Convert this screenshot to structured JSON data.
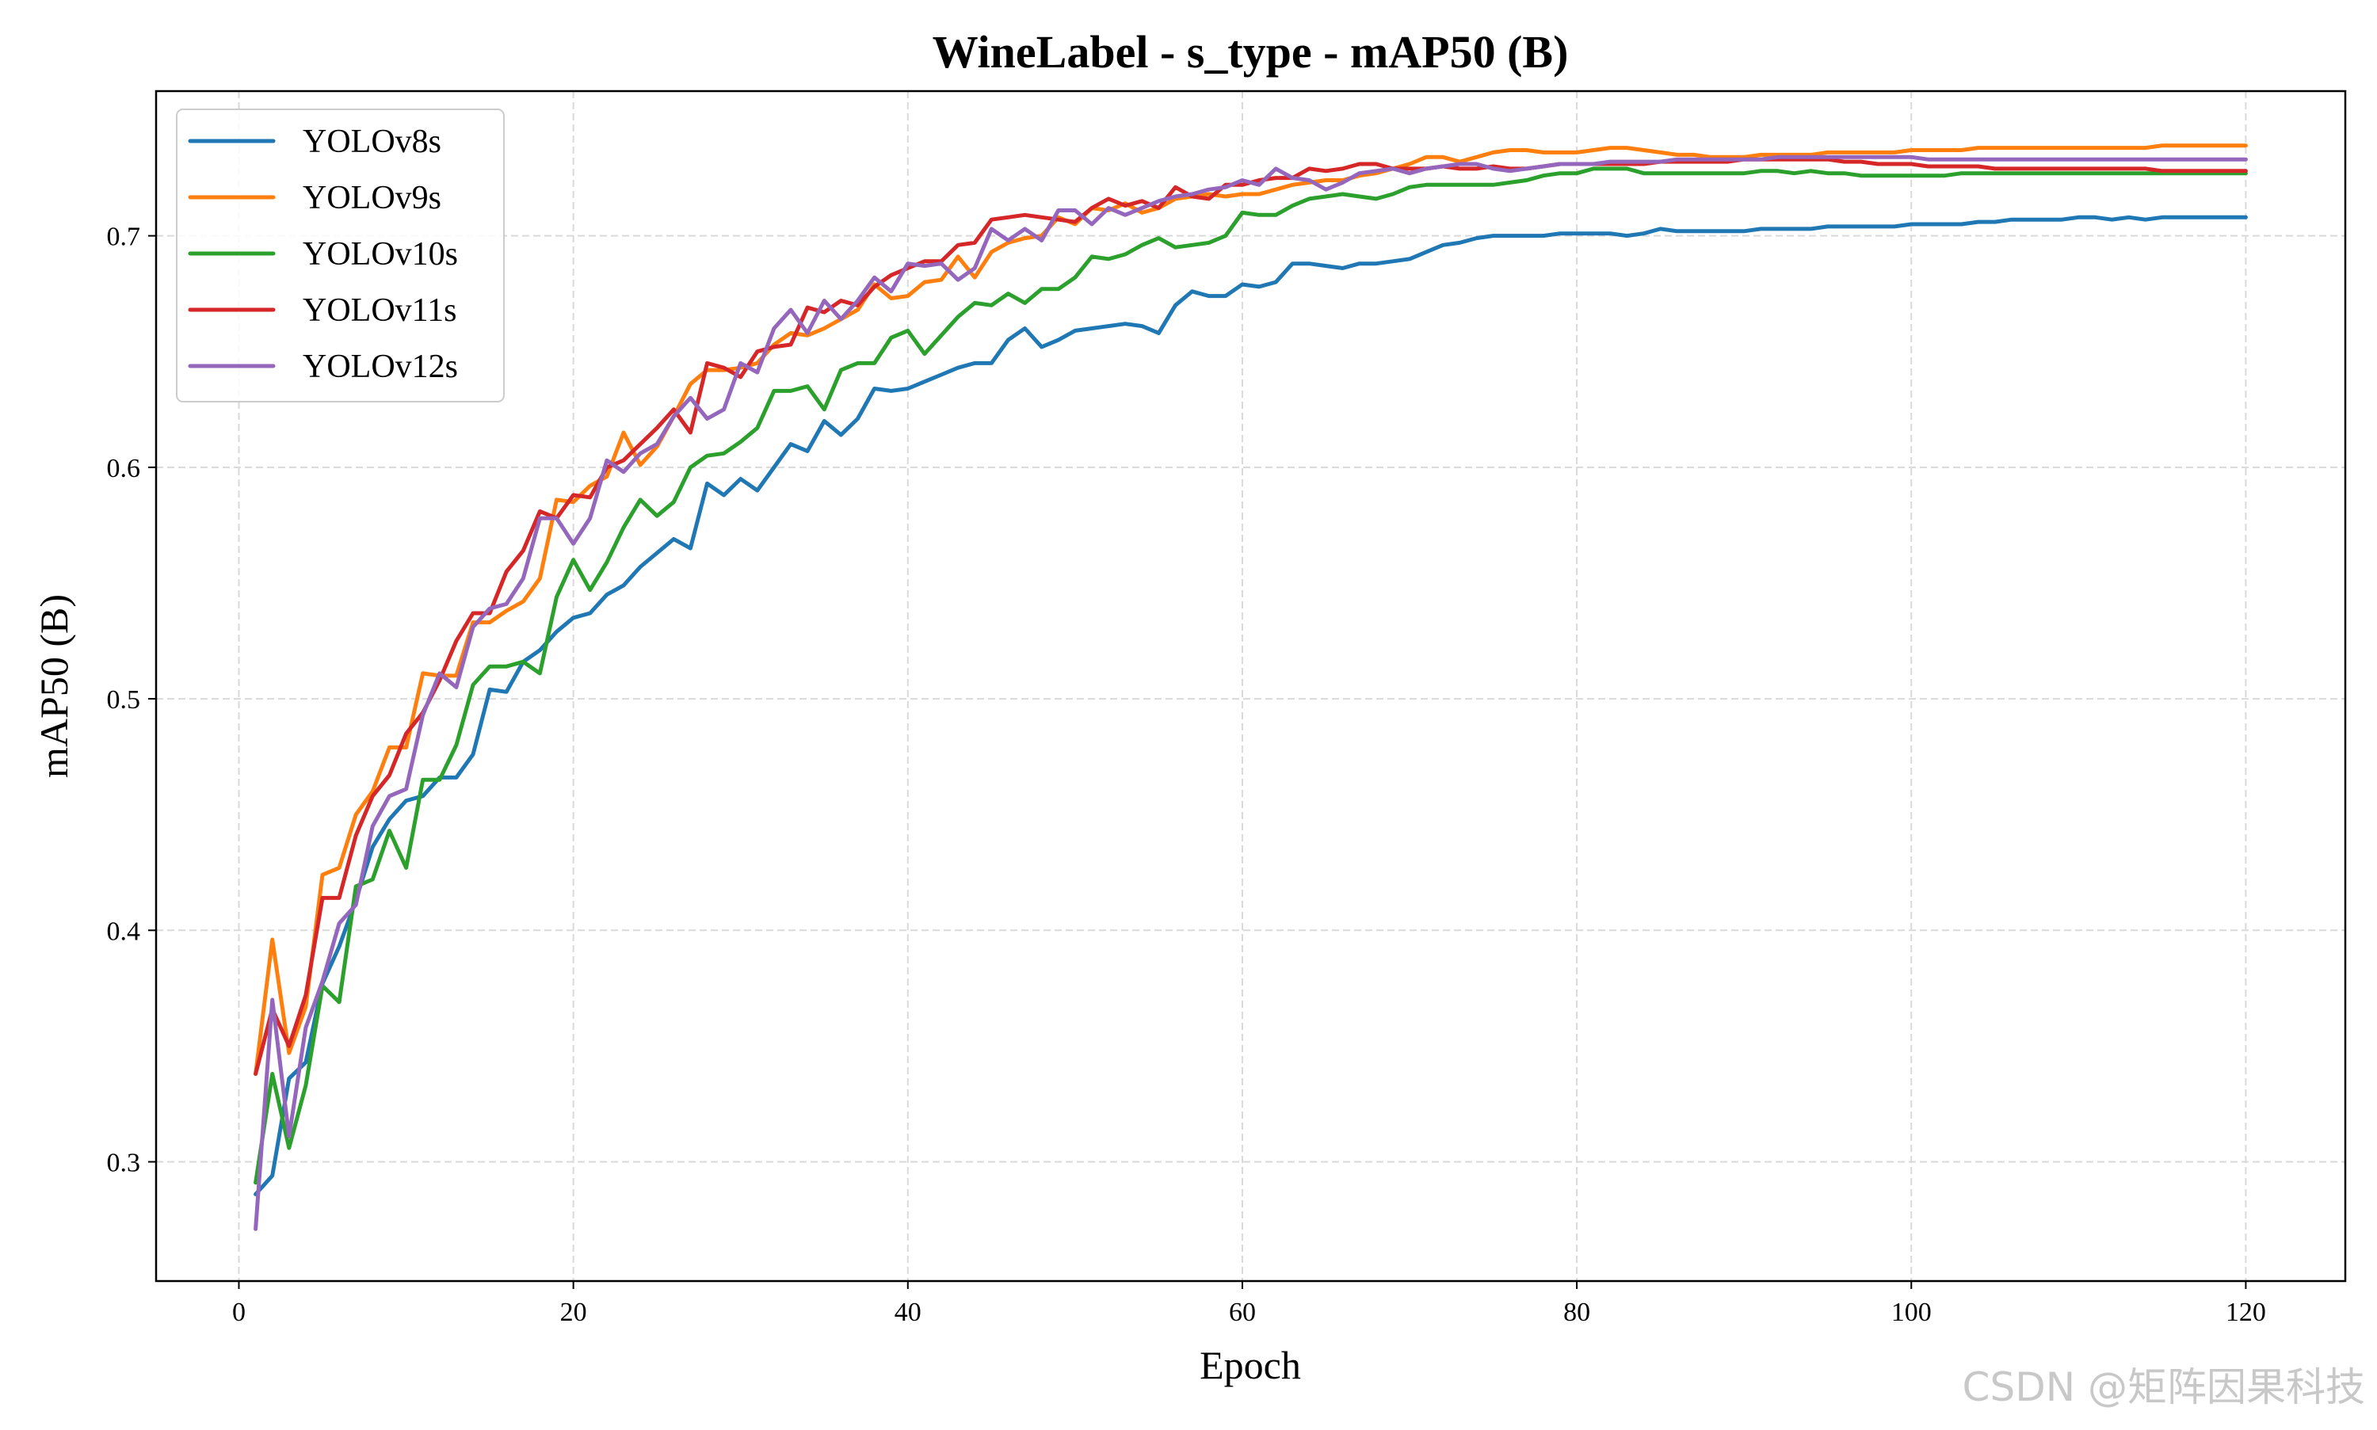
{
  "chart_data": {
    "type": "line",
    "title": "WineLabel - s_type - mAP50 (B)",
    "xlabel": "Epoch",
    "ylabel": "mAP50 (B)",
    "xlim": [
      -4.95,
      125.95
    ],
    "ylim": [
      0.2485,
      0.7625
    ],
    "xticks": [
      0,
      20,
      40,
      60,
      80,
      100,
      120
    ],
    "yticks": [
      0.3,
      0.4,
      0.5,
      0.6,
      0.7
    ],
    "xtick_labels": [
      "0",
      "20",
      "40",
      "60",
      "80",
      "100",
      "120"
    ],
    "ytick_labels": [
      "0.3",
      "0.4",
      "0.5",
      "0.6",
      "0.7"
    ],
    "grid": true,
    "legend_position": "top-left",
    "x": [
      1,
      2,
      3,
      4,
      5,
      6,
      7,
      8,
      9,
      10,
      11,
      12,
      13,
      14,
      15,
      16,
      17,
      18,
      19,
      20,
      21,
      22,
      23,
      24,
      25,
      26,
      27,
      28,
      29,
      30,
      31,
      32,
      33,
      34,
      35,
      36,
      37,
      38,
      39,
      40,
      41,
      42,
      43,
      44,
      45,
      46,
      47,
      48,
      49,
      50,
      51,
      52,
      53,
      54,
      55,
      56,
      57,
      58,
      59,
      60,
      61,
      62,
      63,
      64,
      65,
      66,
      67,
      68,
      69,
      70,
      71,
      72,
      73,
      74,
      75,
      76,
      77,
      78,
      79,
      80,
      81,
      82,
      83,
      84,
      85,
      86,
      87,
      88,
      89,
      90,
      91,
      92,
      93,
      94,
      95,
      96,
      97,
      98,
      99,
      100,
      101,
      102,
      103,
      104,
      105,
      106,
      107,
      108,
      109,
      110,
      111,
      112,
      113,
      114,
      115,
      116,
      117,
      118,
      119,
      120
    ],
    "series": [
      {
        "name": "YOLOv8s",
        "color": "#1f77b4",
        "values": [
          0.286,
          0.294,
          0.336,
          0.343,
          0.377,
          0.393,
          0.413,
          0.436,
          0.448,
          0.456,
          0.458,
          0.466,
          0.466,
          0.476,
          0.504,
          0.503,
          0.516,
          0.521,
          0.529,
          0.535,
          0.537,
          0.545,
          0.549,
          0.557,
          0.563,
          0.569,
          0.565,
          0.593,
          0.588,
          0.595,
          0.59,
          0.6,
          0.61,
          0.607,
          0.62,
          0.614,
          0.621,
          0.634,
          0.633,
          0.634,
          0.637,
          0.64,
          0.643,
          0.645,
          0.645,
          0.655,
          0.66,
          0.652,
          0.655,
          0.659,
          0.66,
          0.661,
          0.662,
          0.661,
          0.658,
          0.67,
          0.676,
          0.674,
          0.674,
          0.679,
          0.678,
          0.68,
          0.688,
          0.688,
          0.687,
          0.686,
          0.688,
          0.688,
          0.689,
          0.69,
          0.693,
          0.696,
          0.697,
          0.699,
          0.7,
          0.7,
          0.7,
          0.7,
          0.701,
          0.701,
          0.701,
          0.701,
          0.7,
          0.701,
          0.703,
          0.702,
          0.702,
          0.702,
          0.702,
          0.702,
          0.703,
          0.703,
          0.703,
          0.703,
          0.704,
          0.704,
          0.704,
          0.704,
          0.704,
          0.705,
          0.705,
          0.705,
          0.705,
          0.706,
          0.706,
          0.707,
          0.707,
          0.707,
          0.707,
          0.708,
          0.708,
          0.707,
          0.708,
          0.707,
          0.708,
          0.708,
          0.708,
          0.708,
          0.708,
          0.708
        ]
      },
      {
        "name": "YOLOv9s",
        "color": "#ff7f0e",
        "values": [
          0.338,
          0.396,
          0.347,
          0.367,
          0.424,
          0.427,
          0.45,
          0.46,
          0.479,
          0.479,
          0.511,
          0.51,
          0.51,
          0.533,
          0.533,
          0.538,
          0.542,
          0.552,
          0.586,
          0.585,
          0.592,
          0.596,
          0.615,
          0.601,
          0.609,
          0.622,
          0.636,
          0.642,
          0.642,
          0.643,
          0.645,
          0.653,
          0.658,
          0.657,
          0.66,
          0.664,
          0.668,
          0.679,
          0.673,
          0.674,
          0.68,
          0.681,
          0.691,
          0.682,
          0.693,
          0.697,
          0.699,
          0.7,
          0.708,
          0.705,
          0.712,
          0.711,
          0.714,
          0.71,
          0.712,
          0.716,
          0.717,
          0.718,
          0.717,
          0.718,
          0.718,
          0.72,
          0.722,
          0.723,
          0.724,
          0.724,
          0.726,
          0.727,
          0.729,
          0.731,
          0.734,
          0.734,
          0.732,
          0.734,
          0.736,
          0.737,
          0.737,
          0.736,
          0.736,
          0.736,
          0.737,
          0.738,
          0.738,
          0.737,
          0.736,
          0.735,
          0.735,
          0.734,
          0.734,
          0.734,
          0.735,
          0.735,
          0.735,
          0.735,
          0.736,
          0.736,
          0.736,
          0.736,
          0.736,
          0.737,
          0.737,
          0.737,
          0.737,
          0.738,
          0.738,
          0.738,
          0.738,
          0.738,
          0.738,
          0.738,
          0.738,
          0.738,
          0.738,
          0.738,
          0.739,
          0.739,
          0.739,
          0.739,
          0.739,
          0.739
        ]
      },
      {
        "name": "YOLOv10s",
        "color": "#2ca02c",
        "values": [
          0.291,
          0.338,
          0.306,
          0.333,
          0.376,
          0.369,
          0.419,
          0.422,
          0.443,
          0.427,
          0.465,
          0.465,
          0.48,
          0.506,
          0.514,
          0.514,
          0.516,
          0.511,
          0.544,
          0.56,
          0.547,
          0.559,
          0.574,
          0.586,
          0.579,
          0.585,
          0.6,
          0.605,
          0.606,
          0.611,
          0.617,
          0.633,
          0.633,
          0.635,
          0.625,
          0.642,
          0.645,
          0.645,
          0.656,
          0.659,
          0.649,
          0.657,
          0.665,
          0.671,
          0.67,
          0.675,
          0.671,
          0.677,
          0.677,
          0.682,
          0.691,
          0.69,
          0.692,
          0.696,
          0.699,
          0.695,
          0.696,
          0.697,
          0.7,
          0.71,
          0.709,
          0.709,
          0.713,
          0.716,
          0.717,
          0.718,
          0.717,
          0.716,
          0.718,
          0.721,
          0.722,
          0.722,
          0.722,
          0.722,
          0.722,
          0.723,
          0.724,
          0.726,
          0.727,
          0.727,
          0.729,
          0.729,
          0.729,
          0.727,
          0.727,
          0.727,
          0.727,
          0.727,
          0.727,
          0.727,
          0.728,
          0.728,
          0.727,
          0.728,
          0.727,
          0.727,
          0.726,
          0.726,
          0.726,
          0.726,
          0.726,
          0.726,
          0.727,
          0.727,
          0.727,
          0.727,
          0.727,
          0.727,
          0.727,
          0.727,
          0.727,
          0.727,
          0.727,
          0.727,
          0.727,
          0.727,
          0.727,
          0.727,
          0.727,
          0.727
        ]
      },
      {
        "name": "YOLOv11s",
        "color": "#d62728",
        "values": [
          0.338,
          0.366,
          0.35,
          0.372,
          0.414,
          0.414,
          0.441,
          0.458,
          0.467,
          0.485,
          0.494,
          0.508,
          0.525,
          0.537,
          0.537,
          0.555,
          0.564,
          0.581,
          0.578,
          0.588,
          0.587,
          0.6,
          0.603,
          0.61,
          0.617,
          0.625,
          0.615,
          0.645,
          0.643,
          0.639,
          0.65,
          0.652,
          0.653,
          0.669,
          0.667,
          0.672,
          0.67,
          0.678,
          0.683,
          0.686,
          0.689,
          0.689,
          0.696,
          0.697,
          0.707,
          0.708,
          0.709,
          0.708,
          0.707,
          0.706,
          0.712,
          0.716,
          0.713,
          0.715,
          0.712,
          0.721,
          0.717,
          0.716,
          0.722,
          0.722,
          0.724,
          0.725,
          0.725,
          0.729,
          0.728,
          0.729,
          0.731,
          0.731,
          0.729,
          0.729,
          0.729,
          0.73,
          0.729,
          0.729,
          0.73,
          0.729,
          0.729,
          0.73,
          0.731,
          0.731,
          0.731,
          0.731,
          0.731,
          0.731,
          0.732,
          0.732,
          0.732,
          0.732,
          0.732,
          0.733,
          0.733,
          0.733,
          0.733,
          0.733,
          0.733,
          0.732,
          0.732,
          0.731,
          0.731,
          0.731,
          0.73,
          0.73,
          0.73,
          0.73,
          0.729,
          0.729,
          0.729,
          0.729,
          0.729,
          0.729,
          0.729,
          0.729,
          0.729,
          0.729,
          0.728,
          0.728,
          0.728,
          0.728,
          0.728,
          0.728
        ]
      },
      {
        "name": "YOLOv12s",
        "color": "#9467bd",
        "values": [
          0.271,
          0.37,
          0.311,
          0.358,
          0.378,
          0.403,
          0.411,
          0.445,
          0.458,
          0.461,
          0.493,
          0.511,
          0.505,
          0.531,
          0.539,
          0.541,
          0.552,
          0.578,
          0.578,
          0.567,
          0.578,
          0.603,
          0.598,
          0.606,
          0.61,
          0.622,
          0.63,
          0.621,
          0.625,
          0.645,
          0.641,
          0.66,
          0.668,
          0.658,
          0.672,
          0.664,
          0.672,
          0.682,
          0.676,
          0.688,
          0.687,
          0.688,
          0.681,
          0.686,
          0.703,
          0.698,
          0.703,
          0.698,
          0.711,
          0.711,
          0.705,
          0.712,
          0.709,
          0.712,
          0.715,
          0.717,
          0.718,
          0.72,
          0.721,
          0.724,
          0.722,
          0.729,
          0.725,
          0.724,
          0.72,
          0.723,
          0.727,
          0.728,
          0.729,
          0.727,
          0.729,
          0.73,
          0.731,
          0.731,
          0.729,
          0.728,
          0.729,
          0.73,
          0.731,
          0.731,
          0.731,
          0.732,
          0.732,
          0.732,
          0.732,
          0.733,
          0.733,
          0.733,
          0.733,
          0.733,
          0.733,
          0.734,
          0.734,
          0.734,
          0.734,
          0.734,
          0.734,
          0.734,
          0.734,
          0.734,
          0.733,
          0.733,
          0.733,
          0.733,
          0.733,
          0.733,
          0.733,
          0.733,
          0.733,
          0.733,
          0.733,
          0.733,
          0.733,
          0.733,
          0.733,
          0.733,
          0.733,
          0.733,
          0.733,
          0.733
        ]
      }
    ]
  },
  "watermark": "CSDN @矩阵因果科技"
}
